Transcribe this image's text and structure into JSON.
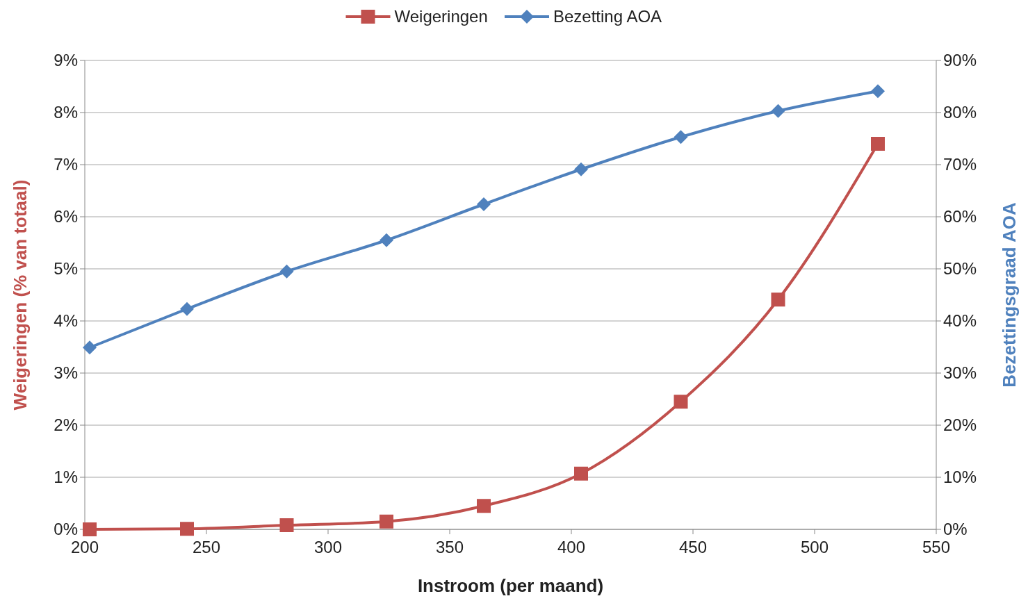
{
  "chart_data": {
    "type": "line",
    "xlabel": "Instroom (per maand)",
    "ylabel": "Weigeringen (% van totaal)",
    "y2label": "Bezettingsgraad AOA",
    "x": [
      202,
      242,
      283,
      324,
      364,
      404,
      445,
      485,
      526
    ],
    "series": [
      {
        "name": "Weigeringen",
        "color": "#c0504d",
        "marker": "square",
        "values": [
          0,
          0.01,
          0.08,
          0.15,
          0.45,
          1.07,
          2.45,
          4.41,
          7.4
        ]
      },
      {
        "name": "Bezetting AOA",
        "color": "#4f81bd",
        "marker": "diamond",
        "axis": "y2",
        "values": [
          34.9,
          42.3,
          49.5,
          55.5,
          62.4,
          69.1,
          75.3,
          80.3,
          84.1
        ]
      }
    ],
    "xlim": [
      200,
      550
    ],
    "xticks": [
      200,
      250,
      300,
      350,
      400,
      450,
      500,
      550
    ],
    "ylim": [
      0,
      9
    ],
    "yticks": [
      {
        "value": 0,
        "label": "0%"
      },
      {
        "value": 1,
        "label": "1%"
      },
      {
        "value": 2,
        "label": "2%"
      },
      {
        "value": 3,
        "label": "3%"
      },
      {
        "value": 4,
        "label": "4%"
      },
      {
        "value": 5,
        "label": "5%"
      },
      {
        "value": 6,
        "label": "6%"
      },
      {
        "value": 7,
        "label": "7%"
      },
      {
        "value": 8,
        "label": "8%"
      },
      {
        "value": 9,
        "label": "9%"
      }
    ],
    "y2lim": [
      0,
      90
    ],
    "y2ticks": [
      {
        "value": 0,
        "label": "0%"
      },
      {
        "value": 10,
        "label": "10%"
      },
      {
        "value": 20,
        "label": "20%"
      },
      {
        "value": 30,
        "label": "30%"
      },
      {
        "value": 40,
        "label": "40%"
      },
      {
        "value": 50,
        "label": "50%"
      },
      {
        "value": 60,
        "label": "60%"
      },
      {
        "value": 70,
        "label": "70%"
      },
      {
        "value": 80,
        "label": "80%"
      },
      {
        "value": 90,
        "label": "90%"
      }
    ],
    "grid": "y",
    "legend": "top",
    "line_style": "solid"
  }
}
